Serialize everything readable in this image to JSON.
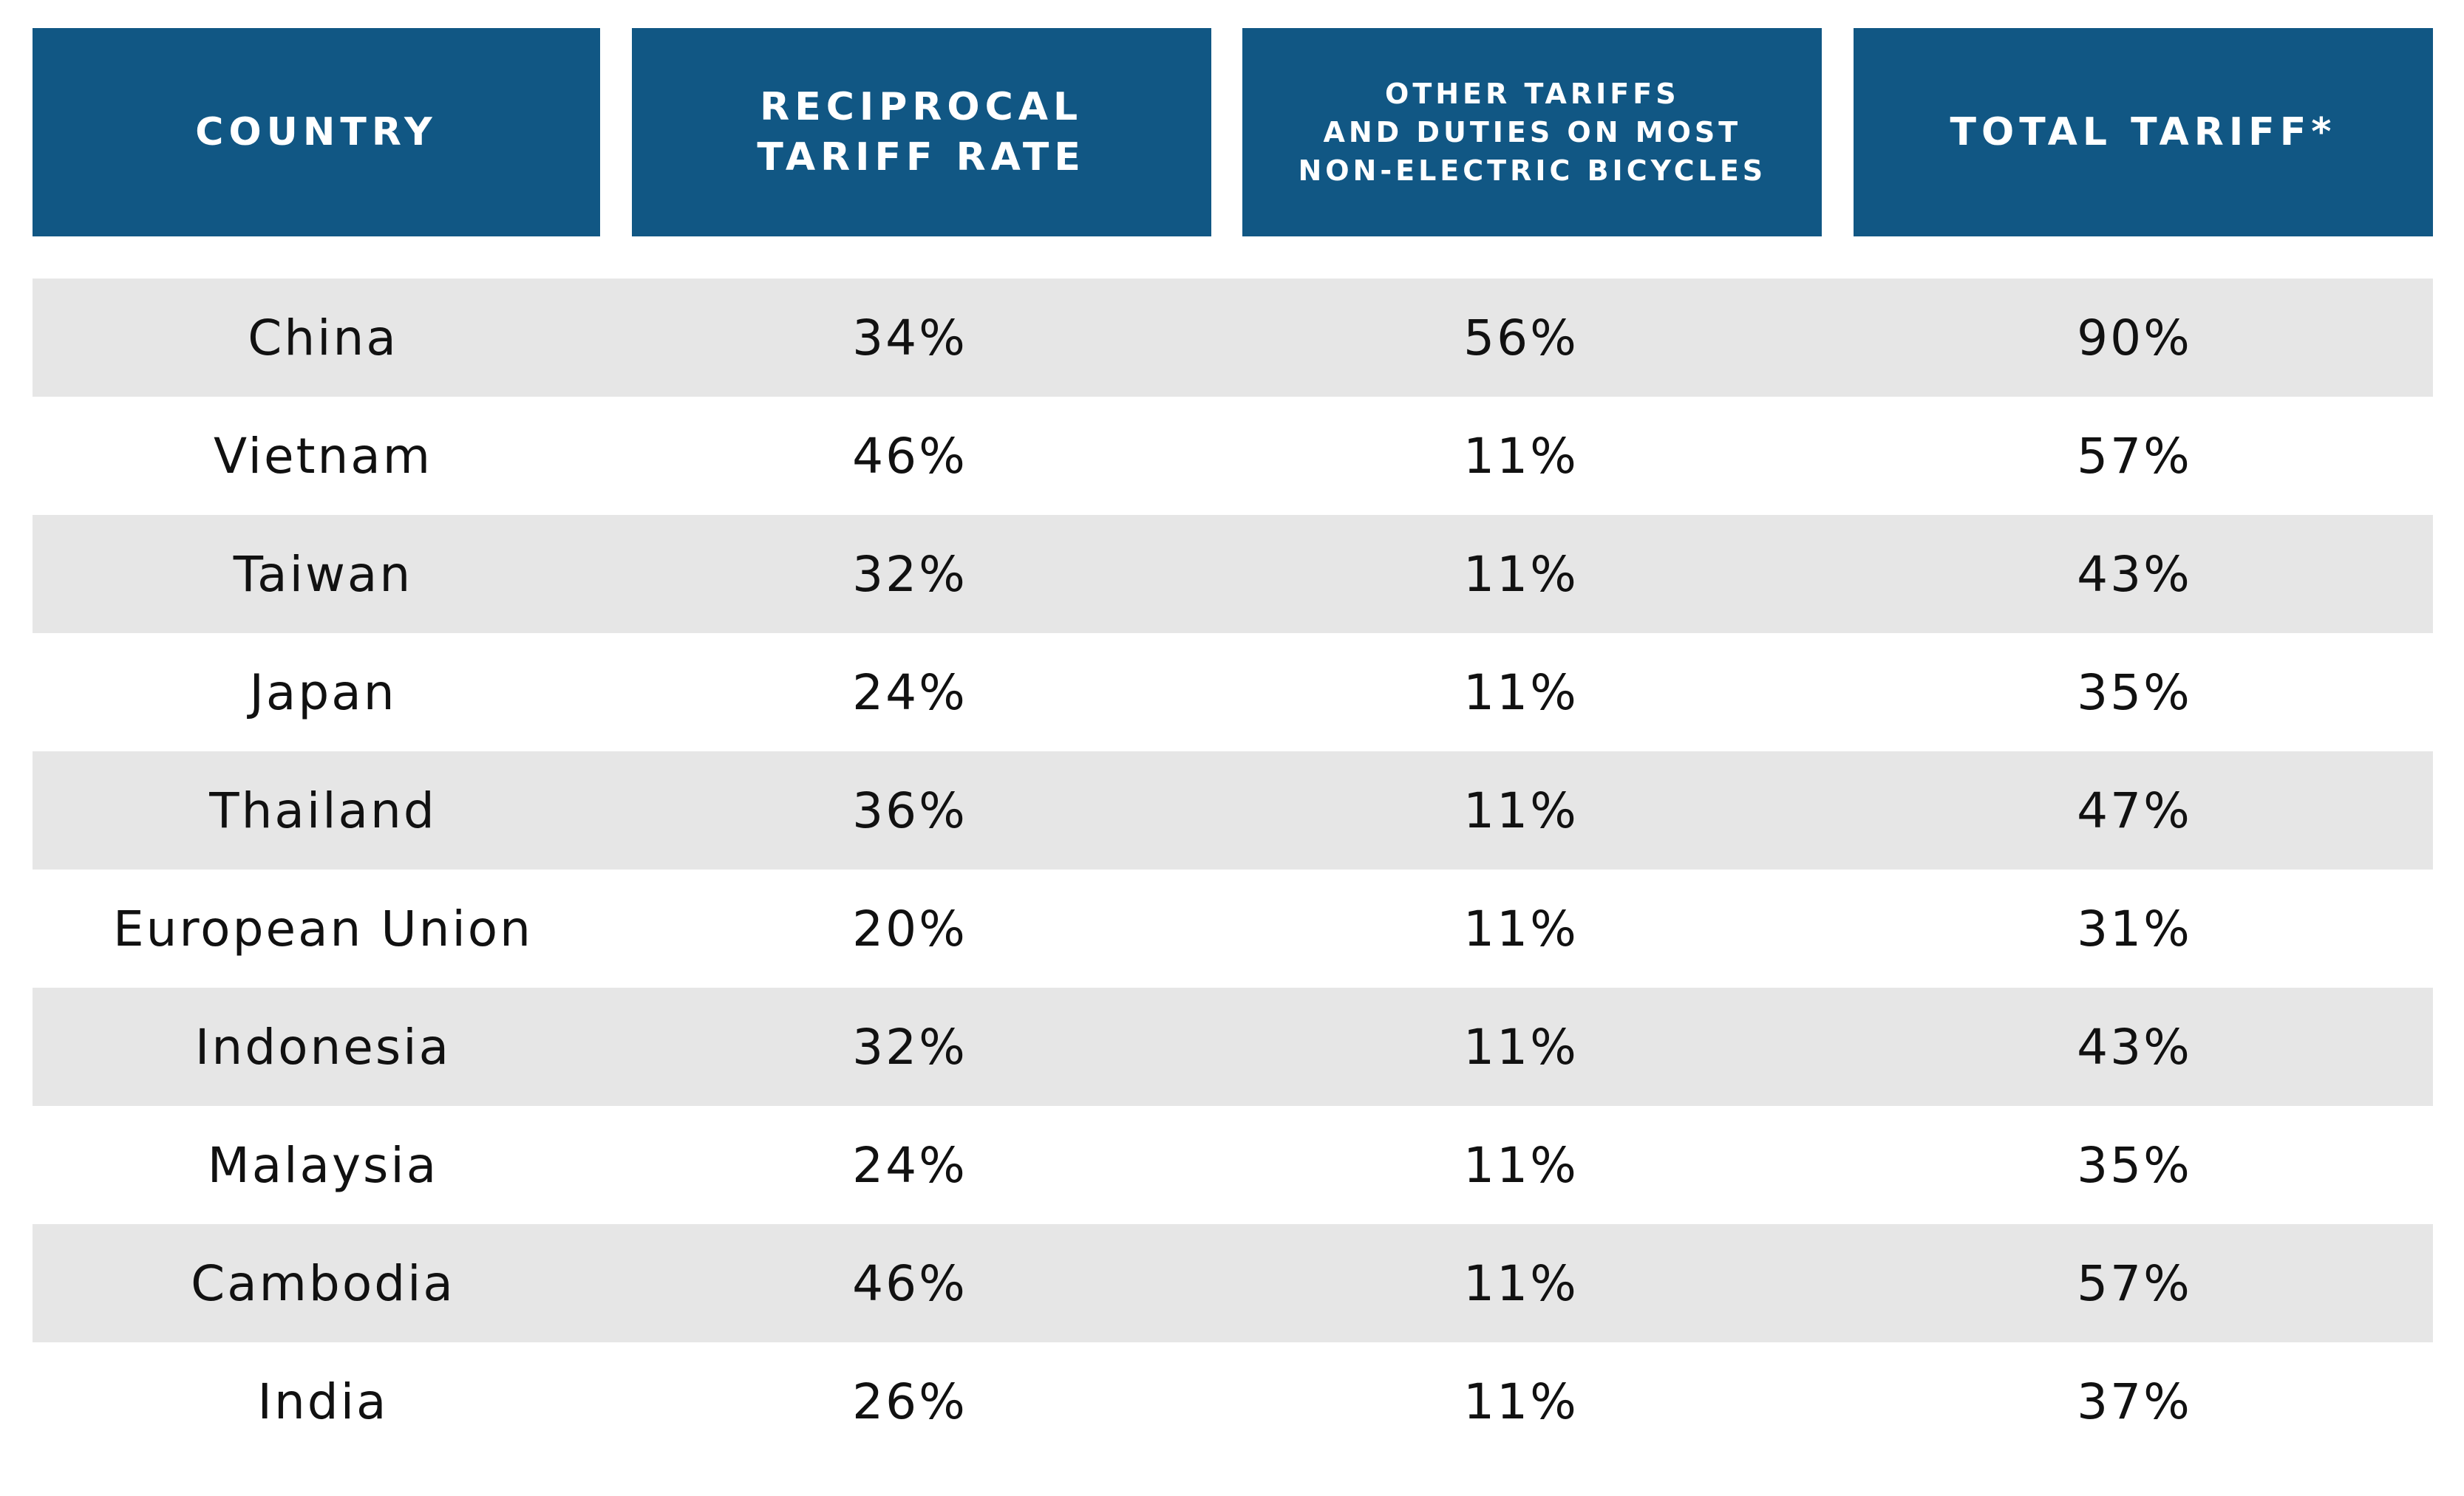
{
  "chart_data": {
    "type": "table",
    "columns": [
      "COUNTRY",
      "RECIPROCAL\nTARIFF RATE",
      "OTHER TARIFFS\nAND DUTIES ON MOST\nNON-ELECTRIC BICYCLES",
      "TOTAL TARIFF*"
    ],
    "rows": [
      {
        "country": "China",
        "reciprocal": "34%",
        "other": "56%",
        "total": "90%"
      },
      {
        "country": "Vietnam",
        "reciprocal": "46%",
        "other": "11%",
        "total": "57%"
      },
      {
        "country": "Taiwan",
        "reciprocal": "32%",
        "other": "11%",
        "total": "43%"
      },
      {
        "country": "Japan",
        "reciprocal": "24%",
        "other": "11%",
        "total": "35%"
      },
      {
        "country": "Thailand",
        "reciprocal": "36%",
        "other": "11%",
        "total": "47%"
      },
      {
        "country": "European Union",
        "reciprocal": "20%",
        "other": "11%",
        "total": "31%"
      },
      {
        "country": "Indonesia",
        "reciprocal": "32%",
        "other": "11%",
        "total": "43%"
      },
      {
        "country": "Malaysia",
        "reciprocal": "24%",
        "other": "11%",
        "total": "35%"
      },
      {
        "country": "Cambodia",
        "reciprocal": "46%",
        "other": "11%",
        "total": "57%"
      },
      {
        "country": "India",
        "reciprocal": "26%",
        "other": "11%",
        "total": "37%"
      }
    ]
  },
  "colors": {
    "header_bg": "#115784",
    "header_text": "#ffffff",
    "row_shade": "#e6e6e6",
    "body_text": "#111111"
  }
}
